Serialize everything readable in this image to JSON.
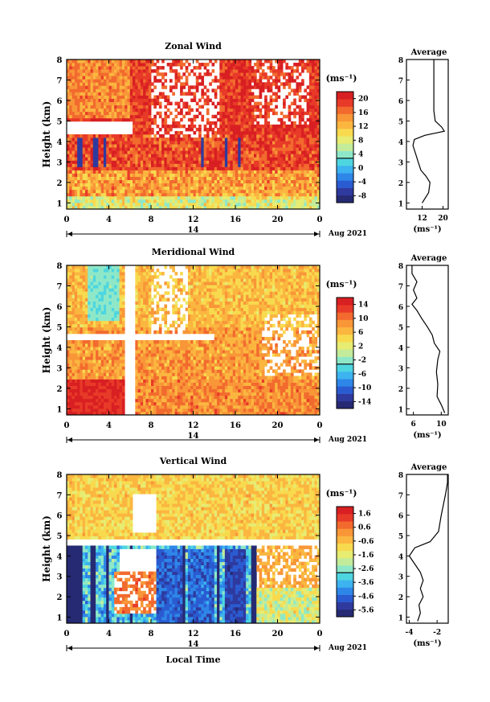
{
  "chart_data": [
    {
      "type": "heatmap",
      "title": "Zonal Wind",
      "xlabel": "",
      "ylabel": "Height (km)",
      "xlim": [
        0,
        24
      ],
      "ylim": [
        0.7,
        8
      ],
      "xticks": [
        "0",
        "4",
        "8",
        "12",
        "16",
        "20",
        "0"
      ],
      "yticks": [
        "1",
        "2",
        "3",
        "4",
        "5",
        "6",
        "7",
        "8"
      ],
      "day_label": "14",
      "date_label": "Aug 2021",
      "colorbar": {
        "unit": "(ms⁻¹)",
        "ticks": [
          "-8",
          "-4",
          "0",
          "4",
          "8",
          "12",
          "16",
          "20"
        ],
        "vmin": -10,
        "vmax": 22
      },
      "average": {
        "title": "Average",
        "xlabel": "(ms⁻¹)",
        "xticks": [
          "12",
          "20"
        ],
        "xlim": [
          6,
          22
        ],
        "profile": [
          [
            1.0,
            12.0
          ],
          [
            1.5,
            14.5
          ],
          [
            2.0,
            15.0
          ],
          [
            2.3,
            13.5
          ],
          [
            2.6,
            11.5
          ],
          [
            3.0,
            10.5
          ],
          [
            3.4,
            9.5
          ],
          [
            3.8,
            8.5
          ],
          [
            4.1,
            9.0
          ],
          [
            4.3,
            13.0
          ],
          [
            4.5,
            20.5
          ],
          [
            4.7,
            19.5
          ],
          [
            5.0,
            17.0
          ],
          [
            5.5,
            16.5
          ],
          [
            6.5,
            16.5
          ],
          [
            7.5,
            16.5
          ],
          [
            8.0,
            16.5
          ]
        ]
      }
    },
    {
      "type": "heatmap",
      "title": "Meridional Wind",
      "xlabel": "",
      "ylabel": "Height (km)",
      "xlim": [
        0,
        24
      ],
      "ylim": [
        0.7,
        8
      ],
      "xticks": [
        "0",
        "4",
        "8",
        "12",
        "16",
        "20",
        "0"
      ],
      "yticks": [
        "1",
        "2",
        "3",
        "4",
        "5",
        "6",
        "7",
        "8"
      ],
      "day_label": "14",
      "date_label": "Aug 2021",
      "colorbar": {
        "unit": "(ms⁻¹)",
        "ticks": [
          "-14",
          "-10",
          "-6",
          "-2",
          "2",
          "6",
          "10",
          "14"
        ],
        "vmin": -16,
        "vmax": 16
      },
      "average": {
        "title": "Average",
        "xlabel": "(ms⁻¹)",
        "xticks": [
          "6",
          "10"
        ],
        "xlim": [
          5,
          11
        ],
        "profile": [
          [
            0.8,
            10.5
          ],
          [
            1.2,
            10.0
          ],
          [
            1.6,
            9.4
          ],
          [
            2.2,
            9.5
          ],
          [
            2.8,
            9.3
          ],
          [
            3.4,
            9.5
          ],
          [
            3.8,
            9.8
          ],
          [
            4.2,
            9.0
          ],
          [
            4.6,
            8.7
          ],
          [
            5.0,
            8.0
          ],
          [
            5.4,
            7.2
          ],
          [
            5.8,
            6.5
          ],
          [
            6.1,
            5.8
          ],
          [
            6.4,
            6.5
          ],
          [
            6.8,
            6.0
          ],
          [
            7.2,
            6.5
          ],
          [
            7.6,
            5.8
          ],
          [
            8.0,
            5.8
          ]
        ]
      }
    },
    {
      "type": "heatmap",
      "title": "Vertical Wind",
      "xlabel": "Local Time",
      "ylabel": "Height (km)",
      "xlim": [
        0,
        24
      ],
      "ylim": [
        0.7,
        8
      ],
      "xticks": [
        "0",
        "4",
        "8",
        "12",
        "16",
        "20",
        "0"
      ],
      "yticks": [
        "1",
        "2",
        "3",
        "4",
        "5",
        "6",
        "7",
        "8"
      ],
      "day_label": "14",
      "date_label": "Aug 2021",
      "colorbar": {
        "unit": "(ms⁻¹)",
        "ticks": [
          "-5.6",
          "-4.6",
          "-3.6",
          "-2.6",
          "-1.6",
          "-0.6",
          "0.6",
          "1.6"
        ],
        "vmin": -6,
        "vmax": 2
      },
      "average": {
        "title": "Average",
        "xlabel": "(ms⁻¹)",
        "xticks": [
          "-4",
          "-2"
        ],
        "xlim": [
          -4.2,
          -1.2
        ],
        "profile": [
          [
            0.8,
            -3.4
          ],
          [
            1.2,
            -3.2
          ],
          [
            1.6,
            -3.3
          ],
          [
            2.0,
            -3.0
          ],
          [
            2.4,
            -3.2
          ],
          [
            2.8,
            -3.0
          ],
          [
            3.2,
            -3.2
          ],
          [
            3.6,
            -3.6
          ],
          [
            4.0,
            -4.0
          ],
          [
            4.4,
            -3.6
          ],
          [
            4.7,
            -2.5
          ],
          [
            5.2,
            -1.9
          ],
          [
            6.0,
            -1.7
          ],
          [
            7.0,
            -1.4
          ],
          [
            7.6,
            -1.25
          ],
          [
            8.0,
            -1.25
          ]
        ]
      }
    }
  ]
}
